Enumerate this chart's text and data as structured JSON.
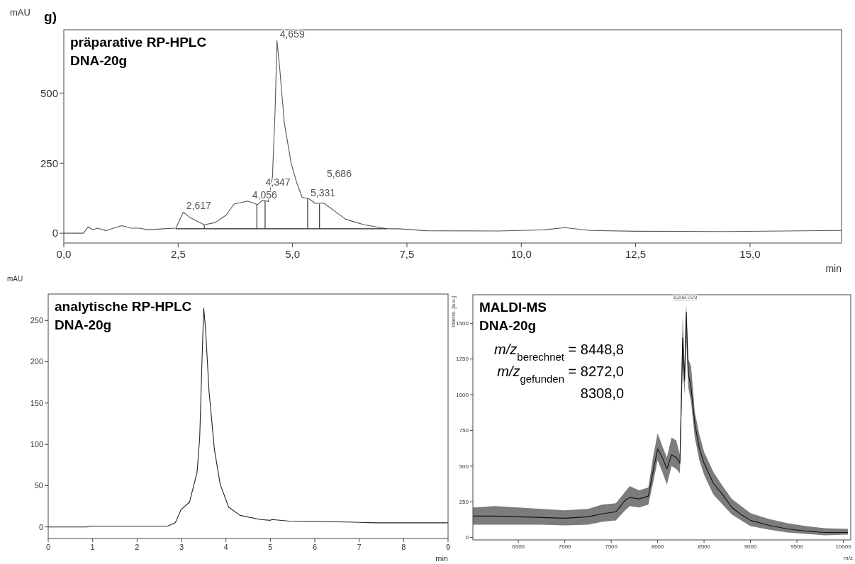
{
  "chart_data": [
    {
      "type": "line",
      "title": "präparative RP-HPLC",
      "subtitle": "DNA-20g",
      "xlabel": "min",
      "ylabel": "mAU",
      "xlim": [
        0,
        17
      ],
      "ylim": [
        -35,
        726
      ],
      "xticks": [
        {
          "value": 0,
          "label": "0,0"
        },
        {
          "value": 2.5,
          "label": "2,5"
        },
        {
          "value": 5,
          "label": "5,0"
        },
        {
          "value": 7.5,
          "label": "7,5"
        },
        {
          "value": 10,
          "label": "10,0"
        },
        {
          "value": 12.5,
          "label": "12,5"
        },
        {
          "value": 15,
          "label": "15,0"
        }
      ],
      "yticks": [
        0,
        250,
        500
      ],
      "marker": "none",
      "line_style": "solid",
      "grid": false,
      "annotations": [
        "g)",
        {
          "text": "2,617",
          "x": 2.617,
          "y": 75
        },
        {
          "text": "4,056",
          "x": 4.056,
          "y": 113
        },
        {
          "text": "4,347",
          "x": 4.347,
          "y": 118
        },
        {
          "text": "4,659",
          "x": 4.659,
          "y": 687
        },
        {
          "text": "5,331",
          "x": 5.331,
          "y": 123
        },
        {
          "text": "5,686",
          "x": 5.686,
          "y": 108
        }
      ],
      "series": [
        {
          "color": "#555555",
          "x": [
            0,
            0.43,
            0.53,
            0.64,
            0.73,
            0.93,
            1.05,
            1.27,
            1.47,
            1.65,
            1.85,
            2.18,
            2.45,
            2.61,
            2.77,
            3.07,
            3.31,
            3.55,
            3.72,
            4.02,
            4.23,
            4.35,
            4.47,
            4.56,
            4.62,
            4.66,
            4.72,
            4.82,
            4.97,
            5.09,
            5.21,
            5.36,
            5.5,
            5.68,
            5.92,
            6.16,
            6.57,
            7.05,
            7.31,
            7.92,
            9.5,
            10.5,
            10.95,
            11.5,
            12.5,
            14.5,
            17
          ],
          "values": [
            0,
            0,
            23,
            12,
            18,
            9,
            16,
            27,
            18,
            18,
            12,
            16,
            18,
            75,
            55,
            30,
            38,
            65,
            104,
            115,
            102,
            118,
            113,
            200,
            443,
            687,
            588,
            394,
            249,
            181,
            128,
            123,
            106,
            108,
            79,
            50,
            30,
            16,
            16,
            9,
            8,
            12,
            20,
            10,
            7,
            6,
            10
          ]
        },
        {
          "color": "#222222",
          "x": [
            2.45,
            7.05
          ],
          "values": [
            16,
            16
          ]
        },
        {
          "color": "#222222",
          "x": [
            3.07,
            3.07
          ],
          "values": [
            16,
            28
          ]
        },
        {
          "color": "#222222",
          "x": [
            4.22,
            4.22
          ],
          "values": [
            16,
            102
          ]
        },
        {
          "color": "#222222",
          "x": [
            4.4,
            4.4
          ],
          "values": [
            16,
            116
          ]
        },
        {
          "color": "#222222",
          "x": [
            5.33,
            5.33
          ],
          "values": [
            16,
            123
          ]
        },
        {
          "color": "#222222",
          "x": [
            5.59,
            5.59
          ],
          "values": [
            16,
            105
          ]
        }
      ]
    },
    {
      "type": "line",
      "title": "analytische RP-HPLC",
      "subtitle": "DNA-20g",
      "xlabel": "min",
      "ylabel": "mAU",
      "xlim": [
        0,
        9
      ],
      "ylim": [
        -14,
        282
      ],
      "xticks": [
        0,
        1,
        2,
        3,
        4,
        5,
        6,
        7,
        8,
        9
      ],
      "yticks": [
        0,
        50,
        100,
        150,
        200,
        250
      ],
      "marker": "none",
      "line_style": "solid",
      "grid": false,
      "series": [
        {
          "color": "#222222",
          "x": [
            0,
            0.87,
            0.95,
            2.17,
            2.69,
            2.86,
            2.99,
            3.18,
            3.35,
            3.41,
            3.46,
            3.5,
            3.54,
            3.62,
            3.74,
            3.87,
            4.06,
            4.32,
            4.78,
            5.0,
            5.04,
            5.43,
            6.73,
            7.38,
            9
          ],
          "values": [
            0,
            0,
            1,
            1,
            1,
            5,
            21,
            30,
            66,
            108,
            199,
            265,
            241,
            164,
            94,
            52,
            24,
            14,
            9,
            8,
            9,
            7,
            6,
            5,
            5
          ]
        }
      ]
    },
    {
      "type": "line",
      "title": "MALDI-MS",
      "subtitle": "DNA-20g",
      "xlabel": "m/z",
      "ylabel": "Intens. [a.u.]",
      "xlim": [
        6010,
        10080
      ],
      "ylim": [
        -17,
        1700
      ],
      "xticks": [
        6500,
        7000,
        7500,
        8000,
        8500,
        9000,
        9500,
        10000
      ],
      "yticks": [
        0,
        250,
        500,
        750,
        1000,
        1250,
        1500
      ],
      "marker": "none",
      "line_style": "solid",
      "grid": false,
      "annotations": [
        "m/z$_{berechnet}$ = 8448,8",
        "m/z$_{gefunden}$ = 8272,0",
        "8308,0",
        {
          "text": "8308.029",
          "x": 8308,
          "y": 1640
        }
      ],
      "series": [
        {
          "color": "#111111",
          "x": [
            6010,
            6250,
            6500,
            6750,
            7000,
            7250,
            7400,
            7550,
            7650,
            7700,
            7800,
            7900,
            7950,
            8000,
            8050,
            8100,
            8150,
            8200,
            8240,
            8270,
            8290,
            8308,
            8330,
            8360,
            8400,
            8450,
            8500,
            8600,
            8700,
            8800,
            8900,
            9000,
            9200,
            9400,
            9600,
            9800,
            10050
          ],
          "values": [
            150,
            150,
            145,
            140,
            135,
            145,
            165,
            180,
            260,
            280,
            270,
            290,
            460,
            620,
            560,
            480,
            580,
            560,
            520,
            1400,
            1100,
            1580,
            1150,
            1050,
            800,
            620,
            520,
            380,
            300,
            210,
            160,
            120,
            85,
            60,
            45,
            35,
            35
          ],
          "lower": [
            90,
            90,
            90,
            90,
            85,
            90,
            110,
            120,
            190,
            220,
            210,
            230,
            380,
            540,
            460,
            370,
            500,
            480,
            450,
            1200,
            1000,
            1400,
            1050,
            950,
            700,
            540,
            440,
            300,
            230,
            160,
            120,
            80,
            55,
            35,
            25,
            15,
            20
          ],
          "upper": [
            210,
            220,
            210,
            200,
            190,
            200,
            230,
            240,
            320,
            360,
            330,
            350,
            560,
            730,
            640,
            560,
            700,
            680,
            580,
            1550,
            1200,
            1640,
            1250,
            1200,
            880,
            720,
            600,
            460,
            360,
            270,
            220,
            170,
            130,
            100,
            80,
            65,
            60
          ]
        }
      ]
    }
  ]
}
